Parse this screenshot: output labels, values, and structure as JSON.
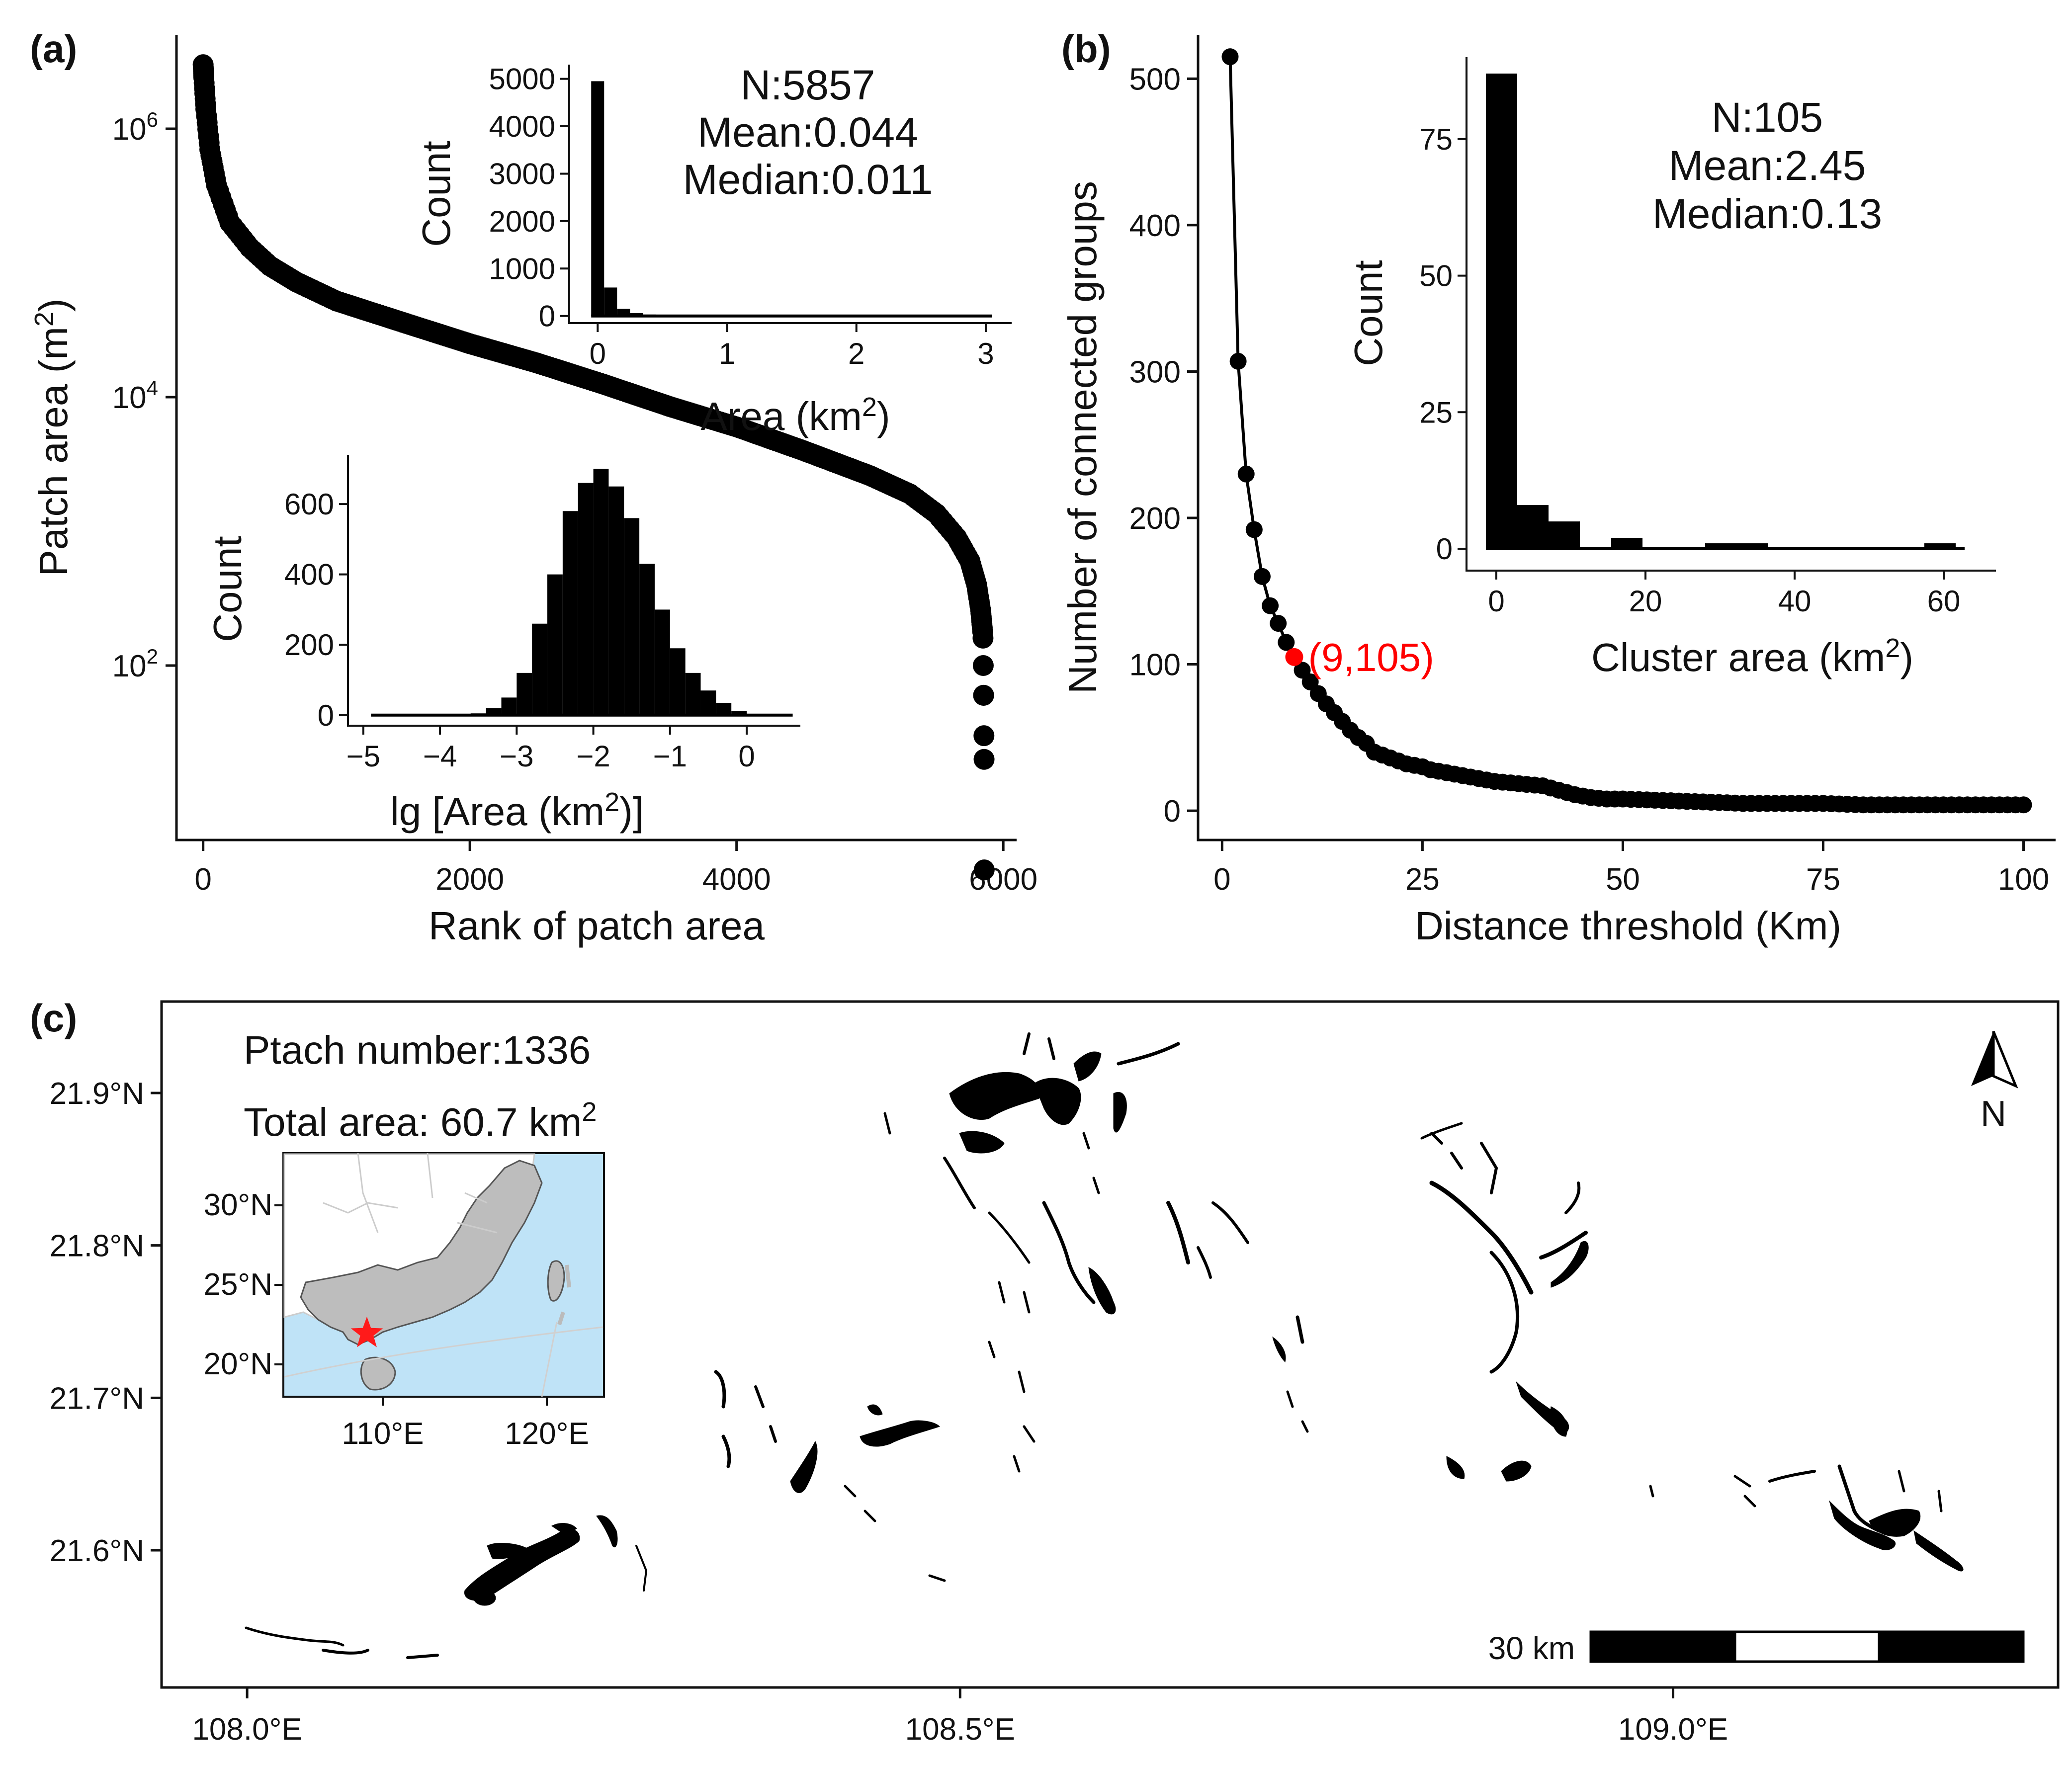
{
  "chart_data": [
    {
      "panel": "(a)",
      "type": "scatter",
      "xlabel": "Rank of patch area",
      "ylabel_main": "Patch area (m",
      "ylabel_sup": "2",
      "ylabel_close": ")",
      "yscale": "log",
      "xlim": [
        -200,
        6100
      ],
      "ylim_log10": [
        0.7,
        6.7
      ],
      "xticks": [
        0,
        2000,
        4000,
        6000
      ],
      "xtick_labels": [
        "0",
        "2000",
        "4000",
        "6000"
      ],
      "yticks_log10": [
        2,
        4,
        6
      ],
      "ytick_base": "10",
      "ytick_exps": [
        "2",
        "4",
        "6"
      ],
      "n": 5857,
      "curve_x": [
        0,
        5,
        20,
        50,
        100,
        200,
        350,
        500,
        700,
        1000,
        1500,
        2000,
        2500,
        3000,
        3500,
        4000,
        4500,
        5000,
        5300,
        5500,
        5650,
        5750,
        5800,
        5830,
        5845
      ],
      "curve_y": [
        3000000,
        2400000,
        1400000,
        700000,
        380000,
        200000,
        130000,
        95000,
        72000,
        52000,
        36000,
        25000,
        18000,
        12500,
        8500,
        6000,
        4000,
        2600,
        1900,
        1350,
        900,
        600,
        400,
        260,
        180
      ],
      "tail_x": [
        5848,
        5850,
        5852,
        5853,
        5855,
        5856,
        5857
      ],
      "tail_y": [
        160,
        100,
        60,
        60,
        30,
        20,
        3
      ],
      "insets": [
        {
          "name": "area-histogram",
          "type": "bar",
          "xlabel_main": "Area (km",
          "xlabel_sup": "2",
          "xlabel_close": ")",
          "ylabel": "Count",
          "xlim": [
            -0.22,
            3.2
          ],
          "ylim": [
            -150,
            5300
          ],
          "xticks": [
            0,
            1,
            2,
            3
          ],
          "xtick_labels": [
            "0",
            "1",
            "2",
            "3"
          ],
          "yticks": [
            0,
            1000,
            2000,
            3000,
            4000,
            5000
          ],
          "ytick_labels": [
            "0",
            "1000",
            "2000",
            "3000",
            "4000",
            "5000"
          ],
          "bins_left": [
            -0.05,
            0.05,
            0.15,
            0.25,
            0.35,
            0.45,
            0.55
          ],
          "bin_width": 0.1,
          "values": [
            4950,
            600,
            150,
            60,
            30,
            15,
            10
          ],
          "tail_line_to": 3.05,
          "stats": [
            "N:5857",
            "Mean:0.044",
            "Median:0.011"
          ]
        },
        {
          "name": "lg-area-histogram",
          "type": "bar",
          "xlabel_main": "lg [Area (km",
          "xlabel_sup": "2",
          "xlabel_close": ")]",
          "ylabel": "Count",
          "xlim": [
            -5.2,
            0.7
          ],
          "ylim": [
            -30,
            740
          ],
          "xticks": [
            -5,
            -4,
            -3,
            -2,
            -1,
            0
          ],
          "xtick_labels": [
            "−5",
            "−4",
            "−3",
            "−2",
            "−1",
            "0"
          ],
          "yticks": [
            0,
            200,
            400,
            600
          ],
          "ytick_labels": [
            "0",
            "200",
            "400",
            "600"
          ],
          "bins_left": [
            -3.6,
            -3.4,
            -3.2,
            -3.0,
            -2.8,
            -2.6,
            -2.4,
            -2.2,
            -2.0,
            -1.8,
            -1.6,
            -1.4,
            -1.2,
            -1.0,
            -0.8,
            -0.6,
            -0.4,
            -0.2
          ],
          "bin_width": 0.2,
          "values": [
            5,
            20,
            50,
            120,
            260,
            400,
            580,
            660,
            700,
            650,
            560,
            430,
            300,
            190,
            120,
            70,
            35,
            12
          ],
          "baseline_range": [
            -4.9,
            0.6
          ]
        }
      ]
    },
    {
      "panel": "(b)",
      "type": "line",
      "xlabel": "Distance threshold (Km)",
      "ylabel": "Number of connected groups",
      "xlim": [
        -3,
        104
      ],
      "ylim": [
        -20,
        530
      ],
      "xticks": [
        0,
        25,
        50,
        75,
        100
      ],
      "xtick_labels": [
        "0",
        "25",
        "50",
        "75",
        "100"
      ],
      "yticks": [
        0,
        100,
        200,
        300,
        400,
        500
      ],
      "ytick_labels": [
        "0",
        "100",
        "200",
        "300",
        "400",
        "500"
      ],
      "x": [
        1,
        2,
        3,
        4,
        5,
        6,
        7,
        8,
        9,
        10,
        11,
        12,
        13,
        14,
        15,
        16,
        17,
        18,
        19,
        20,
        21,
        22,
        23,
        24,
        25,
        26,
        27,
        28,
        29,
        30,
        32,
        34,
        36,
        38,
        40,
        42,
        44,
        46,
        48,
        50,
        55,
        60,
        65,
        70,
        75,
        80,
        85,
        90,
        95,
        100
      ],
      "y": [
        515,
        307,
        230,
        192,
        160,
        140,
        128,
        115,
        105,
        96,
        88,
        80,
        73,
        67,
        61,
        55,
        50,
        46,
        40,
        38,
        36,
        34,
        32,
        31,
        30,
        28,
        27,
        26,
        25,
        24,
        22,
        20,
        19,
        18,
        17,
        14,
        11,
        9,
        8,
        8,
        7,
        6,
        5,
        5,
        5,
        4,
        4,
        4,
        4,
        4
      ],
      "highlight": {
        "x": 9,
        "y": 105,
        "label": "(9,105)",
        "color": "#ff0000"
      },
      "inset": {
        "name": "cluster-area-histogram",
        "type": "bar",
        "xlabel_main": "Cluster area (km",
        "xlabel_sup": "2",
        "xlabel_close": ")",
        "ylabel": "Count",
        "xlim": [
          -4,
          67
        ],
        "ylim": [
          -4,
          90
        ],
        "xticks": [
          0,
          20,
          40,
          60
        ],
        "xtick_labels": [
          "0",
          "20",
          "40",
          "60"
        ],
        "yticks": [
          0,
          25,
          50,
          75
        ],
        "ytick_labels": [
          "0",
          "25",
          "50",
          "75"
        ],
        "bins_left": [
          -1.4,
          2.8,
          7,
          11.2,
          15.4,
          19.6,
          23.8,
          28,
          32.2,
          36.4,
          40.6,
          44.8,
          49,
          53.2,
          57.4,
          61.6
        ],
        "bin_width": 4.2,
        "values": [
          87,
          8,
          5,
          0,
          2,
          0,
          0,
          1,
          1,
          0,
          0,
          0,
          0,
          0,
          1,
          0
        ],
        "baseline_range": [
          -1.4,
          62.8
        ],
        "stats": [
          "N:105",
          "Mean:2.45",
          "Median:0.13"
        ]
      }
    }
  ],
  "map": {
    "panel": "(c)",
    "patch_number_label": "Ptach number:1336",
    "total_area_label": "Total area: 60.7 km",
    "total_area_sup": "2",
    "xlim": [
      107.94,
      109.27
    ],
    "ylim": [
      21.51,
      21.96
    ],
    "lon_ticks": [
      108.0,
      108.5,
      109.0
    ],
    "lon_labels": [
      "108.0°E",
      "108.5°E",
      "109.0°E"
    ],
    "lat_ticks": [
      21.6,
      21.7,
      21.8,
      21.9
    ],
    "lat_labels": [
      "21.6°N",
      "21.7°N",
      "21.8°N",
      "21.9°N"
    ],
    "north_label": "N",
    "scale_label": "30 km",
    "inset": {
      "lat_labels": [
        "30°N",
        "25°N",
        "20°N"
      ],
      "lon_labels": [
        "110°E",
        "120°E"
      ],
      "ocean_color": "#bfe3f7",
      "land_color": "#bdbdbd",
      "star_color": "#ff1a1a"
    }
  }
}
